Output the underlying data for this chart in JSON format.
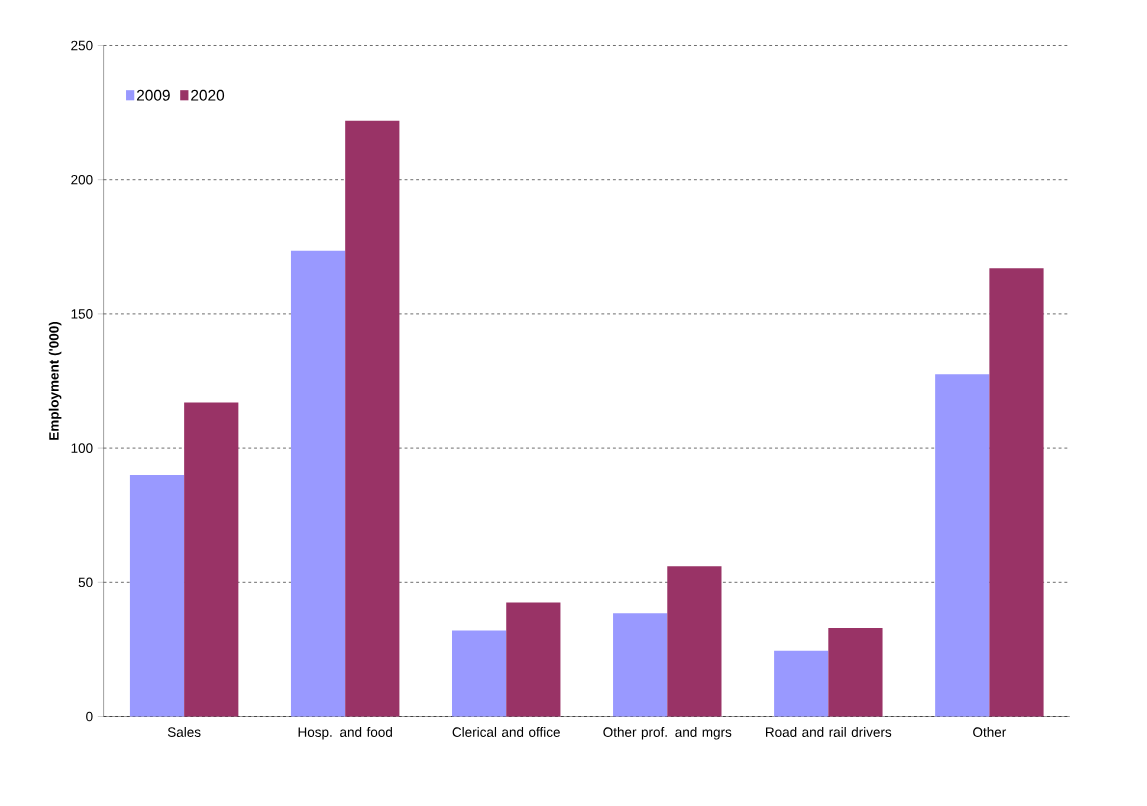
{
  "chart_data": {
    "type": "bar",
    "ylabel": "Employment ('000)",
    "categories": [
      "Sales",
      "Hosp. and food",
      "Clerical and office",
      "Other prof. and mgrs",
      "Road and rail drivers",
      "Other"
    ],
    "series": [
      {
        "name": "2009",
        "color": "#9999ff",
        "values": [
          90,
          173.5,
          32,
          38.5,
          24.5,
          127.5
        ]
      },
      {
        "name": "2020",
        "color": "#993366",
        "values": [
          117,
          222,
          42.5,
          56,
          33,
          167
        ]
      }
    ],
    "ylim": [
      0,
      250
    ],
    "yticks": [
      0,
      50,
      100,
      150,
      200,
      250
    ],
    "grid": "y",
    "legend": "top left"
  }
}
